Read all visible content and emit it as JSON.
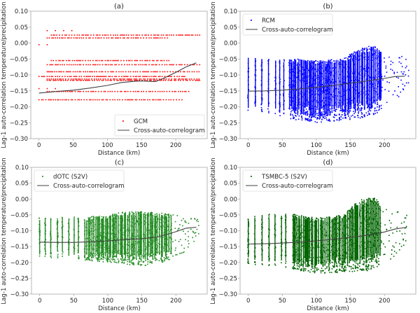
{
  "figure": {
    "ylabel": "Lag-1 auto-correlation temperature/precipitation",
    "xlabel": "Distance (km)"
  },
  "chart_data": [
    {
      "type": "scatter",
      "panel": "a",
      "title": "(a)",
      "xlabel": "Distance (km)",
      "ylabel": "Lag-1 auto-correlation temperature/precipitation",
      "xlim": [
        -12,
        246
      ],
      "ylim": [
        -0.3,
        0.1
      ],
      "xticks": [
        0,
        50,
        100,
        150,
        200
      ],
      "yticks": [
        0.1,
        0.05,
        0.0,
        -0.05,
        -0.1,
        -0.15,
        -0.2,
        -0.25,
        -0.3
      ],
      "ytick_labels": [
        "0.10",
        "0.05",
        "0.00",
        "−0.05",
        "−0.10",
        "−0.15",
        "−0.20",
        "−0.25",
        "−0.30"
      ],
      "legend": {
        "position": "lower-right",
        "entries": [
          "GCM",
          "Cross-auto-correlogram"
        ]
      },
      "grid": false,
      "series": [
        {
          "name": "GCM",
          "kind": "scatter-levels",
          "color": "#ff0000",
          "levels": [
            {
              "y": 0.039,
              "x": [
                12,
                24,
                36,
                48
              ]
            },
            {
              "y": 0.025,
              "x_range": [
                18,
                235
              ]
            },
            {
              "y": 0.016,
              "x_range": [
                12,
                190
              ]
            },
            {
              "y": -0.005,
              "x": [
                0,
                12
              ]
            },
            {
              "y": -0.055,
              "x_range": [
                18,
                190
              ]
            },
            {
              "y": -0.068,
              "x_range": [
                12,
                235
              ]
            },
            {
              "y": -0.09,
              "x_range": [
                12,
                235
              ]
            },
            {
              "y": -0.105,
              "x_range": [
                0,
                215
              ]
            },
            {
              "y": -0.113,
              "x_range": [
                12,
                235
              ]
            },
            {
              "y": -0.117,
              "x_range": [
                12,
                235
              ]
            },
            {
              "y": -0.143,
              "x": [
                0,
                12,
                24
              ]
            },
            {
              "y": -0.152,
              "x_range": [
                12,
                220
              ]
            },
            {
              "y": -0.178,
              "x_range": [
                0,
                210
              ]
            }
          ]
        },
        {
          "name": "Cross-auto-correlogram",
          "kind": "line",
          "color": "#404040",
          "x": [
            0,
            25,
            50,
            75,
            100,
            120,
            140,
            150,
            170,
            180,
            200,
            215,
            230
          ],
          "y": [
            -0.157,
            -0.152,
            -0.148,
            -0.141,
            -0.133,
            -0.124,
            -0.12,
            -0.119,
            -0.121,
            -0.113,
            -0.092,
            -0.075,
            -0.062
          ]
        }
      ]
    },
    {
      "type": "scatter",
      "panel": "b",
      "title": "(b)",
      "xlabel": "Distance (km)",
      "ylabel": "Lag-1 auto-correlation temperature/precipitation",
      "xlim": [
        -12,
        246
      ],
      "ylim": [
        -0.3,
        0.1
      ],
      "xticks": [
        0,
        50,
        100,
        150,
        200
      ],
      "yticks": [
        0.1,
        0.05,
        0.0,
        -0.05,
        -0.1,
        -0.15,
        -0.2,
        -0.25,
        -0.3
      ],
      "ytick_labels": [
        "0.10",
        "0.05",
        "0.00",
        "−0.05",
        "−0.10",
        "−0.15",
        "−0.20",
        "−0.25",
        "−0.30"
      ],
      "legend": {
        "position": "upper-left",
        "entries": [
          "RCM",
          "Cross-auto-correlogram"
        ]
      },
      "grid": false,
      "series": [
        {
          "name": "RCM",
          "kind": "scatter-envelope",
          "color": "#0000ff",
          "x_range": [
            0,
            235
          ],
          "upper": {
            "x": [
              0,
              50,
              100,
              140,
              160,
              185,
              200,
              235
            ],
            "y": [
              -0.045,
              -0.045,
              -0.055,
              -0.05,
              -0.02,
              -0.007,
              -0.03,
              -0.045
            ]
          },
          "lower": {
            "x": [
              0,
              50,
              100,
              150,
              180,
              200,
              215,
              235
            ],
            "y": [
              -0.215,
              -0.235,
              -0.25,
              -0.24,
              -0.23,
              -0.205,
              -0.18,
              -0.14
            ]
          }
        },
        {
          "name": "Cross-auto-correlogram",
          "kind": "line",
          "color": "#404040",
          "x": [
            0,
            25,
            50,
            75,
            100,
            125,
            150,
            175,
            200,
            215,
            230
          ],
          "y": [
            -0.151,
            -0.15,
            -0.148,
            -0.144,
            -0.139,
            -0.133,
            -0.126,
            -0.119,
            -0.111,
            -0.105,
            -0.104
          ]
        }
      ]
    },
    {
      "type": "scatter",
      "panel": "c",
      "title": "(c)",
      "xlabel": "Distance (km)",
      "ylabel": "Lag-1 auto-correlation temperature/precipitation",
      "xlim": [
        -12,
        246
      ],
      "ylim": [
        -0.3,
        0.1
      ],
      "xticks": [
        0,
        50,
        100,
        150,
        200
      ],
      "yticks": [
        0.1,
        0.05,
        0.0,
        -0.05,
        -0.1,
        -0.15,
        -0.2,
        -0.25,
        -0.3
      ],
      "ytick_labels": [
        "0.10",
        "0.05",
        "0.00",
        "−0.05",
        "−0.10",
        "−0.15",
        "−0.20",
        "−0.25",
        "−0.30"
      ],
      "legend": {
        "position": "upper-left",
        "entries": [
          "dOTC (S2V)",
          "Cross-auto-correlogram"
        ]
      },
      "grid": false,
      "series": [
        {
          "name": "dOTC (S2V)",
          "kind": "scatter-envelope",
          "color": "#228b22",
          "x_range": [
            0,
            235
          ],
          "upper": {
            "x": [
              0,
              50,
              100,
              120,
              150,
              200,
              235
            ],
            "y": [
              -0.06,
              -0.057,
              -0.052,
              -0.04,
              -0.038,
              -0.05,
              -0.065
            ]
          },
          "lower": {
            "x": [
              0,
              50,
              100,
              150,
              180,
              200,
              215,
              235
            ],
            "y": [
              -0.183,
              -0.19,
              -0.2,
              -0.212,
              -0.2,
              -0.185,
              -0.165,
              -0.115
            ]
          }
        },
        {
          "name": "Cross-auto-correlogram",
          "kind": "line",
          "color": "#404040",
          "x": [
            0,
            25,
            50,
            75,
            100,
            125,
            150,
            170,
            185,
            200,
            215,
            230
          ],
          "y": [
            -0.136,
            -0.137,
            -0.137,
            -0.135,
            -0.132,
            -0.128,
            -0.125,
            -0.121,
            -0.113,
            -0.103,
            -0.092,
            -0.089
          ]
        }
      ]
    },
    {
      "type": "scatter",
      "panel": "d",
      "title": "(d)",
      "xlabel": "Distance (km)",
      "ylabel": "Lag-1 auto-correlation temperature/precipitation",
      "xlim": [
        -12,
        246
      ],
      "ylim": [
        -0.3,
        0.1
      ],
      "xticks": [
        0,
        50,
        100,
        150,
        200
      ],
      "yticks": [
        0.1,
        0.05,
        0.0,
        -0.05,
        -0.1,
        -0.15,
        -0.2,
        -0.25,
        -0.3
      ],
      "ytick_labels": [
        "0.10",
        "0.05",
        "0.00",
        "−0.05",
        "−0.10",
        "−0.15",
        "−0.20",
        "−0.25",
        "−0.30"
      ],
      "legend": {
        "position": "upper-left",
        "entries": [
          "TSMBC-5 (S2V)",
          "Cross-auto-correlogram"
        ]
      },
      "grid": false,
      "series": [
        {
          "name": "TSMBC-5 (S2V)",
          "kind": "scatter-envelope",
          "color": "#006400",
          "x_range": [
            0,
            235
          ],
          "upper": {
            "x": [
              0,
              50,
              100,
              140,
              160,
              185,
              200,
              235
            ],
            "y": [
              -0.055,
              -0.042,
              -0.06,
              -0.05,
              -0.005,
              0.008,
              -0.03,
              -0.047
            ]
          },
          "lower": {
            "x": [
              0,
              50,
              100,
              150,
              180,
              200,
              215,
              235
            ],
            "y": [
              -0.205,
              -0.215,
              -0.235,
              -0.23,
              -0.225,
              -0.2,
              -0.19,
              -0.125
            ]
          }
        },
        {
          "name": "Cross-auto-correlogram",
          "kind": "line",
          "color": "#404040",
          "x": [
            0,
            25,
            50,
            75,
            100,
            125,
            150,
            175,
            200,
            215,
            230
          ],
          "y": [
            -0.142,
            -0.141,
            -0.139,
            -0.136,
            -0.132,
            -0.127,
            -0.121,
            -0.114,
            -0.104,
            -0.095,
            -0.09
          ]
        }
      ]
    }
  ]
}
